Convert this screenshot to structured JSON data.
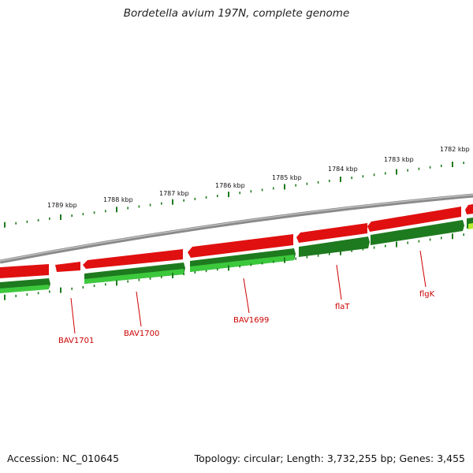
{
  "title": "Bordetella avium 197N, complete genome",
  "footer": {
    "accession": "Accession: NC_010645",
    "summary": "Topology: circular; Length: 3,732,255 bp; Genes: 3,455"
  },
  "colors": {
    "backbone": "#8a8a8a",
    "forward_gene": "#e01010",
    "reverse_gene_dark": "#1e7a1e",
    "reverse_gene_light": "#3cc83c",
    "tick": "#1f7a1f",
    "label": "#cc0000"
  },
  "kbp_labels": [
    {
      "text": "1789 kbp"
    },
    {
      "text": "1788 kbp"
    },
    {
      "text": "1787 kbp"
    },
    {
      "text": "1786 kbp"
    },
    {
      "text": "1785 kbp"
    },
    {
      "text": "1784 kbp"
    },
    {
      "text": "1783 kbp"
    },
    {
      "text": "1782 kbp"
    }
  ],
  "gene_labels": [
    {
      "text": "BAV1701"
    },
    {
      "text": "BAV1700"
    },
    {
      "text": "BAV1699"
    },
    {
      "text": "flaT"
    },
    {
      "text": "flgK"
    }
  ]
}
